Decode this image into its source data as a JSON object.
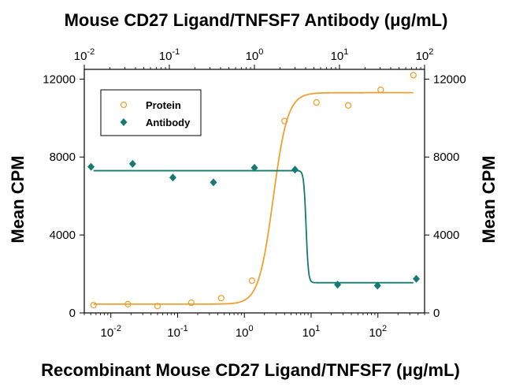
{
  "chart_data": {
    "type": "scatter",
    "title_top": "Mouse CD27 Ligand/TNFSF7 Antibody (μg/mL)",
    "xlabel_bottom": "Recombinant Mouse CD27 Ligand/TNFSF7 (μg/mL)",
    "ylabel_left": "Mean CPM",
    "ylabel_right": "Mean CPM",
    "xscale": "log",
    "xlim_bottom": [
      0.004,
      500
    ],
    "xlim_top": [
      0.01,
      100
    ],
    "ylim": [
      0,
      12500
    ],
    "y_ticks": [
      0,
      4000,
      8000,
      12000
    ],
    "y_tick_labels": [
      "0",
      "4000",
      "8000",
      "12000"
    ],
    "x_ticks_bottom": [
      0.01,
      0.1,
      1,
      10,
      100
    ],
    "x_ticks_top": [
      0.01,
      0.1,
      1,
      10,
      100
    ],
    "x_tick_labels": [
      {
        "base": "10",
        "exp": "-2"
      },
      {
        "base": "10",
        "exp": "-1"
      },
      {
        "base": "10",
        "exp": "0"
      },
      {
        "base": "10",
        "exp": "1"
      },
      {
        "base": "10",
        "exp": "2"
      }
    ],
    "legend_position": "top-left",
    "series": [
      {
        "name": "Protein",
        "axis": "bottom",
        "marker": "open-circle",
        "color": "#f0a030",
        "x": [
          0.0055,
          0.018,
          0.05,
          0.16,
          0.45,
          1.3,
          4.0,
          12,
          36,
          110,
          340
        ],
        "y": [
          400,
          450,
          350,
          520,
          760,
          1650,
          9850,
          10800,
          10650,
          11450,
          12200
        ]
      },
      {
        "name": "Antibody",
        "axis": "top",
        "marker": "filled-diamond",
        "color": "#147a72",
        "x": [
          0.012,
          0.037,
          0.11,
          0.33,
          1.0,
          3.0,
          9.5,
          28,
          80
        ],
        "y": [
          7500,
          7650,
          6950,
          6700,
          7450,
          7350,
          1450,
          1400,
          1750
        ]
      }
    ],
    "fit_curves": [
      {
        "series": "Protein",
        "bottom": 450,
        "top": 11300,
        "ec50": 2.7,
        "hill": 4.0,
        "axis": "bottom"
      },
      {
        "series": "Antibody",
        "bottom": 1550,
        "top": 7300,
        "ic50": 8.4,
        "hill": 25,
        "axis": "bottom"
      }
    ],
    "grid": false
  }
}
